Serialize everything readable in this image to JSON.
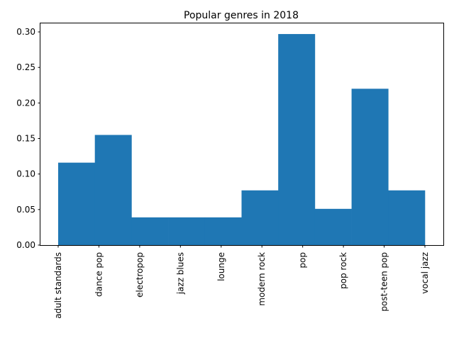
{
  "chart_data": {
    "type": "bar",
    "title": "Popular genres in 2018",
    "xlabel": "",
    "ylabel": "",
    "categories": [
      "adult standards",
      "dance pop",
      "electropop",
      "jazz blues",
      "lounge",
      "modern rock",
      "pop",
      "pop rock",
      "post-teen pop",
      "vocal jazz"
    ],
    "values": [
      0.116,
      0.155,
      0.039,
      0.039,
      0.039,
      0.077,
      0.297,
      0.051,
      0.22,
      0.077
    ],
    "ylim": [
      0,
      0.312
    ],
    "yticks": [
      0.0,
      0.05,
      0.1,
      0.15,
      0.2,
      0.25,
      0.3
    ],
    "ytick_labels": [
      "0.00",
      "0.05",
      "0.10",
      "0.15",
      "0.20",
      "0.25",
      "0.30"
    ],
    "grid": false,
    "legend": "none",
    "bar_color": "#1f77b4"
  }
}
